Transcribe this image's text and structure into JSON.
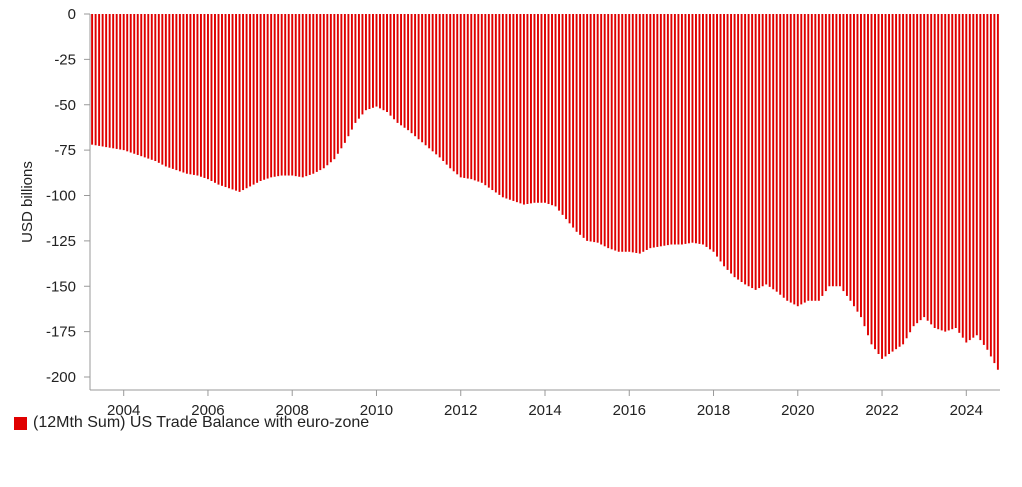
{
  "chart_data": {
    "type": "bar",
    "ylabel": "USD billions",
    "ylim": [
      -200,
      0
    ],
    "yticks": [
      0,
      -25,
      -50,
      -75,
      -100,
      -125,
      -150,
      -175,
      -200
    ],
    "xlim": [
      2003.2,
      2024.8
    ],
    "xticks": [
      2004,
      2006,
      2008,
      2010,
      2012,
      2014,
      2016,
      2018,
      2020,
      2022,
      2024
    ],
    "grid": false,
    "legend_position": "bottom-left",
    "series": [
      {
        "name": "(12Mth Sum) US Trade Balance with euro-zone",
        "color": "#e00000",
        "points": [
          [
            2003.25,
            -72
          ],
          [
            2003.5,
            -73
          ],
          [
            2003.75,
            -74
          ],
          [
            2004.0,
            -75
          ],
          [
            2004.25,
            -77
          ],
          [
            2004.5,
            -79
          ],
          [
            2004.75,
            -81
          ],
          [
            2005.0,
            -84
          ],
          [
            2005.25,
            -86
          ],
          [
            2005.5,
            -88
          ],
          [
            2005.75,
            -89
          ],
          [
            2006.0,
            -91
          ],
          [
            2006.25,
            -94
          ],
          [
            2006.5,
            -96
          ],
          [
            2006.75,
            -98
          ],
          [
            2007.0,
            -95
          ],
          [
            2007.25,
            -92
          ],
          [
            2007.5,
            -90
          ],
          [
            2007.75,
            -89
          ],
          [
            2008.0,
            -89
          ],
          [
            2008.25,
            -90
          ],
          [
            2008.5,
            -88
          ],
          [
            2008.75,
            -85
          ],
          [
            2009.0,
            -80
          ],
          [
            2009.25,
            -71
          ],
          [
            2009.5,
            -60
          ],
          [
            2009.75,
            -53
          ],
          [
            2010.0,
            -51
          ],
          [
            2010.25,
            -54
          ],
          [
            2010.5,
            -60
          ],
          [
            2010.75,
            -64
          ],
          [
            2011.0,
            -69
          ],
          [
            2011.25,
            -74
          ],
          [
            2011.5,
            -79
          ],
          [
            2011.75,
            -85
          ],
          [
            2012.0,
            -90
          ],
          [
            2012.25,
            -91
          ],
          [
            2012.5,
            -93
          ],
          [
            2012.75,
            -97
          ],
          [
            2013.0,
            -101
          ],
          [
            2013.25,
            -103
          ],
          [
            2013.5,
            -105
          ],
          [
            2013.75,
            -104
          ],
          [
            2014.0,
            -104
          ],
          [
            2014.25,
            -106
          ],
          [
            2014.5,
            -113
          ],
          [
            2014.75,
            -120
          ],
          [
            2015.0,
            -125
          ],
          [
            2015.25,
            -126
          ],
          [
            2015.5,
            -129
          ],
          [
            2015.75,
            -131
          ],
          [
            2016.0,
            -131
          ],
          [
            2016.25,
            -132
          ],
          [
            2016.5,
            -129
          ],
          [
            2016.75,
            -128
          ],
          [
            2017.0,
            -127
          ],
          [
            2017.25,
            -127
          ],
          [
            2017.5,
            -126
          ],
          [
            2017.75,
            -127
          ],
          [
            2018.0,
            -131
          ],
          [
            2018.25,
            -139
          ],
          [
            2018.5,
            -145
          ],
          [
            2018.75,
            -149
          ],
          [
            2019.0,
            -152
          ],
          [
            2019.25,
            -149
          ],
          [
            2019.5,
            -153
          ],
          [
            2019.75,
            -158
          ],
          [
            2020.0,
            -161
          ],
          [
            2020.25,
            -158
          ],
          [
            2020.5,
            -158
          ],
          [
            2020.75,
            -150
          ],
          [
            2021.0,
            -150
          ],
          [
            2021.25,
            -158
          ],
          [
            2021.5,
            -167
          ],
          [
            2021.75,
            -182
          ],
          [
            2022.0,
            -190
          ],
          [
            2022.25,
            -186
          ],
          [
            2022.5,
            -182
          ],
          [
            2022.75,
            -172
          ],
          [
            2023.0,
            -167
          ],
          [
            2023.25,
            -173
          ],
          [
            2023.5,
            -175
          ],
          [
            2023.75,
            -173
          ],
          [
            2024.0,
            -181
          ],
          [
            2024.25,
            -177
          ],
          [
            2024.5,
            -185
          ],
          [
            2024.75,
            -196
          ]
        ]
      }
    ]
  }
}
